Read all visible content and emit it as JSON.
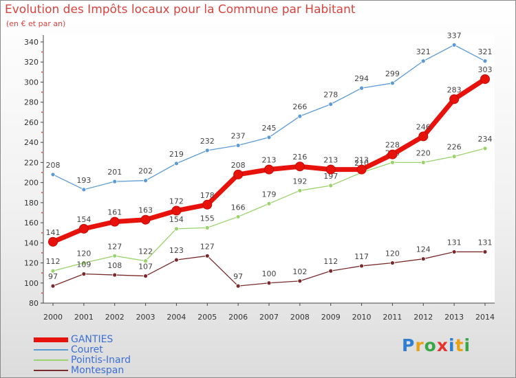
{
  "title": "Evolution des Impôts locaux pour la Commune par Habitant",
  "subtitle": "(en € et par an)",
  "logo": {
    "letters": [
      "P",
      "r",
      "o",
      "x",
      "i",
      "t",
      "i"
    ],
    "colors": [
      "#2e7fd1",
      "#e8a21a",
      "#3aa648",
      "#e3362f",
      "#2e7fd1",
      "#e8a21a",
      "#3aa648"
    ]
  },
  "chart_data": {
    "type": "line",
    "x": [
      "2000",
      "2001",
      "2002",
      "2003",
      "2004",
      "2005",
      "2006",
      "2007",
      "2008",
      "2009",
      "2010",
      "2011",
      "2012",
      "2013",
      "2014"
    ],
    "ylim": [
      80,
      340
    ],
    "yticks": [
      80,
      100,
      120,
      140,
      160,
      180,
      200,
      220,
      240,
      260,
      280,
      300,
      320,
      340
    ],
    "grid": false,
    "legend_position": "bottom-left",
    "series": [
      {
        "name": "GANTIES",
        "color": "#e8120c",
        "values": [
          141,
          154,
          161,
          163,
          172,
          178,
          208,
          213,
          216,
          213,
          213,
          228,
          246,
          283,
          303
        ]
      },
      {
        "name": "Couret",
        "color": "#5b9bd5",
        "values": [
          208,
          193,
          201,
          202,
          219,
          232,
          237,
          245,
          266,
          278,
          294,
          299,
          321,
          337,
          321
        ]
      },
      {
        "name": "Pointis-Inard",
        "color": "#99d36b",
        "values": [
          112,
          120,
          127,
          122,
          154,
          155,
          166,
          179,
          192,
          197,
          210,
          220,
          220,
          226,
          234
        ]
      },
      {
        "name": "Montespan",
        "color": "#7a2a2a",
        "values": [
          97,
          109,
          108,
          107,
          123,
          127,
          97,
          100,
          102,
          112,
          117,
          120,
          124,
          131,
          131
        ]
      }
    ]
  }
}
